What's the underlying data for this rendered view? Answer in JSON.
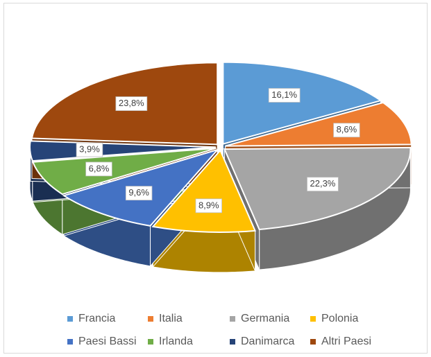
{
  "chart_data": {
    "type": "pie",
    "style": "3d-exploded",
    "categories": [
      "Francia",
      "Italia",
      "Germania",
      "Polonia",
      "Paesi Bassi",
      "Irlanda",
      "Danimarca",
      "Altri Paesi"
    ],
    "values": [
      16.1,
      8.6,
      22.3,
      8.9,
      9.6,
      6.8,
      3.9,
      23.8
    ],
    "value_labels": [
      "16,1%",
      "8,6%",
      "22,3%",
      "8,9%",
      "9,6%",
      "6,8%",
      "3,9%",
      "23,8%"
    ],
    "colors": [
      "#5b9bd5",
      "#ed7d31",
      "#a5a5a5",
      "#ffc000",
      "#4472c4",
      "#70ad47",
      "#264478",
      "#9e480e"
    ],
    "legend": "bottom"
  }
}
